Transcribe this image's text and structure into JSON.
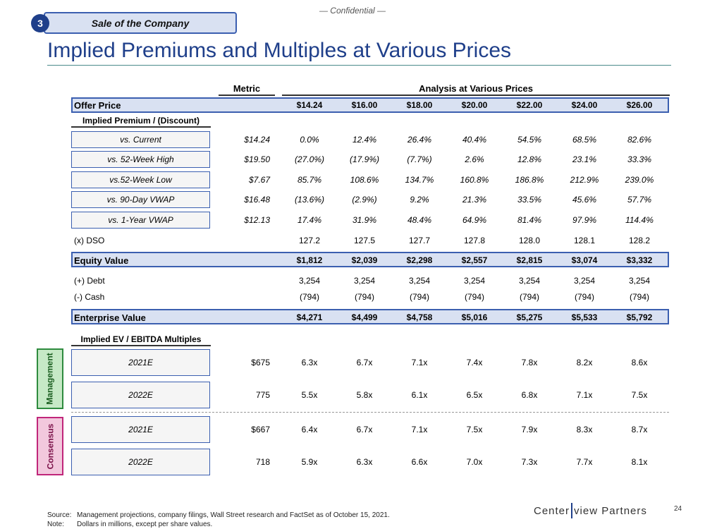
{
  "header": {
    "confidential": "— Confidential —",
    "section_number": "3",
    "section_title": "Sale of the Company"
  },
  "title": "Implied Premiums and Multiples at Various Prices",
  "columns": {
    "metric": "Metric",
    "analysis": "Analysis at Various Prices"
  },
  "offer": {
    "label": "Offer Price",
    "values": [
      "$14.24",
      "$16.00",
      "$18.00",
      "$20.00",
      "$22.00",
      "$24.00",
      "$26.00"
    ]
  },
  "premium": {
    "heading": "Implied Premium / (Discount)",
    "rows": [
      {
        "label": "vs. Current",
        "metric": "$14.24",
        "values": [
          "0.0%",
          "12.4%",
          "26.4%",
          "40.4%",
          "54.5%",
          "68.5%",
          "82.6%"
        ]
      },
      {
        "label": "vs. 52-Week High",
        "metric": "$19.50",
        "values": [
          "(27.0%)",
          "(17.9%)",
          "(7.7%)",
          "2.6%",
          "12.8%",
          "23.1%",
          "33.3%"
        ]
      },
      {
        "label": "vs.52-Week Low",
        "metric": "$7.67",
        "values": [
          "85.7%",
          "108.6%",
          "134.7%",
          "160.8%",
          "186.8%",
          "212.9%",
          "239.0%"
        ]
      },
      {
        "label": "vs. 90-Day VWAP",
        "metric": "$16.48",
        "values": [
          "(13.6%)",
          "(2.9%)",
          "9.2%",
          "21.3%",
          "33.5%",
          "45.6%",
          "57.7%"
        ]
      },
      {
        "label": "vs. 1-Year VWAP",
        "metric": "$12.13",
        "values": [
          "17.4%",
          "31.9%",
          "48.4%",
          "64.9%",
          "81.4%",
          "97.9%",
          "114.4%"
        ]
      }
    ]
  },
  "dso": {
    "label": "(x) DSO",
    "values": [
      "127.2",
      "127.5",
      "127.7",
      "127.8",
      "128.0",
      "128.1",
      "128.2"
    ]
  },
  "equity": {
    "label": "Equity Value",
    "values": [
      "$1,812",
      "$2,039",
      "$2,298",
      "$2,557",
      "$2,815",
      "$3,074",
      "$3,332"
    ]
  },
  "debt": {
    "label": "(+) Debt",
    "values": [
      "3,254",
      "3,254",
      "3,254",
      "3,254",
      "3,254",
      "3,254",
      "3,254"
    ]
  },
  "cash": {
    "label": "(-) Cash",
    "values": [
      "(794)",
      "(794)",
      "(794)",
      "(794)",
      "(794)",
      "(794)",
      "(794)"
    ]
  },
  "ev": {
    "label": "Enterprise Value",
    "values": [
      "$4,271",
      "$4,499",
      "$4,758",
      "$5,016",
      "$5,275",
      "$5,533",
      "$5,792"
    ]
  },
  "multiples": {
    "heading": "Implied EV / EBITDA Multiples",
    "management": {
      "label": "Management",
      "rows": [
        {
          "label": "2021E",
          "metric": "$675",
          "values": [
            "6.3x",
            "6.7x",
            "7.1x",
            "7.4x",
            "7.8x",
            "8.2x",
            "8.6x"
          ]
        },
        {
          "label": "2022E",
          "metric": "775",
          "values": [
            "5.5x",
            "5.8x",
            "6.1x",
            "6.5x",
            "6.8x",
            "7.1x",
            "7.5x"
          ]
        }
      ]
    },
    "consensus": {
      "label": "Consensus",
      "rows": [
        {
          "label": "2021E",
          "metric": "$667",
          "values": [
            "6.4x",
            "6.7x",
            "7.1x",
            "7.5x",
            "7.9x",
            "8.3x",
            "8.7x"
          ]
        },
        {
          "label": "2022E",
          "metric": "718",
          "values": [
            "5.9x",
            "6.3x",
            "6.6x",
            "7.0x",
            "7.3x",
            "7.7x",
            "8.1x"
          ]
        }
      ]
    }
  },
  "footnotes": {
    "source_key": "Source:",
    "source": "Management projections, company filings, Wall Street research and FactSet as of October 15, 2021.",
    "note_key": "Note:",
    "note": "Dollars in millions, except per share values."
  },
  "logo": {
    "left": "Center",
    "right": "view Partners"
  },
  "page_number": "24",
  "colors": {
    "accent": "#1f3f8a",
    "band": "#d9e1f2",
    "management": "#2e8b3e",
    "management_bg": "#c6e9c6",
    "consensus": "#c0267a",
    "consensus_bg": "#f2c8dd"
  }
}
